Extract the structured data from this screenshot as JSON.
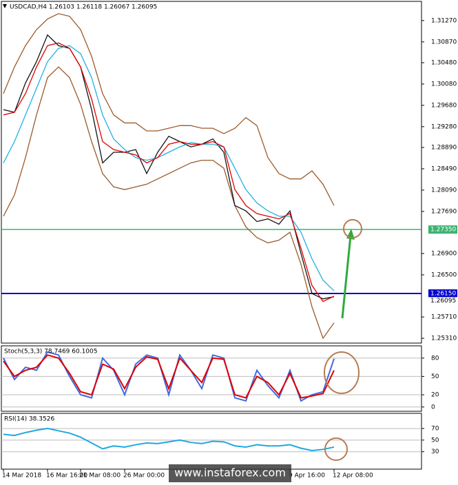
{
  "watermark": "www.instaforex.com",
  "chart_data": [
    {
      "type": "line",
      "title": "USDCAD,H4 1.26103 1.26118 1.26067 1.26095",
      "categories": [
        "14 Mar 2018",
        null,
        null,
        null,
        "16 Mar 16:00",
        null,
        null,
        "21 Mar 08:00",
        null,
        null,
        null,
        "26 Mar 00:00",
        null,
        null,
        null,
        null,
        null,
        null,
        null,
        null,
        null,
        null,
        null,
        null,
        null,
        null,
        "9 Apr 16:00",
        null,
        null,
        null,
        "12 Apr 08:00"
      ],
      "ylim": [
        1.2522,
        1.3163
      ],
      "yticks": [
        {
          "value": 1.3127,
          "label": "1.31270"
        },
        {
          "value": 1.3087,
          "label": "1.30870"
        },
        {
          "value": 1.3048,
          "label": "1.30480"
        },
        {
          "value": 1.3008,
          "label": "1.30080"
        },
        {
          "value": 1.2968,
          "label": "1.29680"
        },
        {
          "value": 1.2928,
          "label": "1.29280"
        },
        {
          "value": 1.2889,
          "label": "1.28890"
        },
        {
          "value": 1.2849,
          "label": "1.28490"
        },
        {
          "value": 1.2809,
          "label": "1.28090"
        },
        {
          "value": 1.2769,
          "label": "1.27690"
        },
        {
          "value": 1.269,
          "label": "1.26900"
        },
        {
          "value": 1.265,
          "label": "1.26500"
        },
        {
          "value": 1.2571,
          "label": "1.25710"
        },
        {
          "value": 1.2531,
          "label": "1.25310"
        }
      ],
      "levels": [
        {
          "value": 1.2735,
          "label": "1.27350",
          "color": "#3cb371"
        },
        {
          "value": 1.2615,
          "label": "1.26150",
          "color": "#0000cd"
        }
      ],
      "last": {
        "value": 1.26095,
        "label": "1.26095"
      },
      "series": [
        {
          "color": "#9a5a2a",
          "values": [
            1.299,
            1.304,
            1.308,
            1.311,
            1.313,
            1.314,
            1.3135,
            1.311,
            1.306,
            1.299,
            1.295,
            1.2935,
            1.2935,
            1.292,
            1.292,
            1.2925,
            1.293,
            1.293,
            1.2925,
            1.2925,
            1.2915,
            1.2925,
            1.2945,
            1.293,
            1.287,
            1.284,
            1.283,
            1.283,
            1.2845,
            1.282,
            1.278
          ]
        },
        {
          "color": "#9a5a2a",
          "values": [
            1.276,
            1.28,
            1.287,
            1.295,
            1.302,
            1.304,
            1.302,
            1.297,
            1.29,
            1.284,
            1.2815,
            1.281,
            1.2815,
            1.282,
            1.283,
            1.284,
            1.285,
            1.286,
            1.2865,
            1.2865,
            1.285,
            1.278,
            1.274,
            1.272,
            1.271,
            1.2715,
            1.273,
            1.267,
            1.259,
            1.2531,
            1.256
          ]
        },
        {
          "color": "#111111",
          "values": [
            1.296,
            1.2955,
            1.301,
            1.305,
            1.31,
            1.308,
            1.3075,
            1.304,
            1.296,
            1.286,
            1.288,
            1.288,
            1.2885,
            1.284,
            1.288,
            1.291,
            1.29,
            1.289,
            1.2895,
            1.2905,
            1.288,
            1.278,
            1.277,
            1.275,
            1.2755,
            1.2745,
            1.277,
            1.269,
            1.2615,
            1.2605,
            1.2609
          ]
        },
        {
          "color": "#20b0e0",
          "values": [
            1.286,
            1.29,
            1.295,
            1.3,
            1.305,
            1.3075,
            1.308,
            1.3065,
            1.302,
            1.295,
            1.2905,
            1.2885,
            1.287,
            1.2865,
            1.287,
            1.288,
            1.289,
            1.2898,
            1.2895,
            1.2895,
            1.289,
            1.285,
            1.281,
            1.2785,
            1.277,
            1.276,
            1.276,
            1.273,
            1.268,
            1.264,
            1.262
          ]
        },
        {
          "color": "#e00000",
          "values": [
            1.295,
            1.2955,
            1.299,
            1.304,
            1.308,
            1.3085,
            1.3075,
            1.304,
            1.298,
            1.29,
            1.2885,
            1.288,
            1.2875,
            1.286,
            1.287,
            1.2895,
            1.29,
            1.2895,
            1.2895,
            1.29,
            1.289,
            1.281,
            1.278,
            1.2765,
            1.276,
            1.2755,
            1.2765,
            1.27,
            1.263,
            1.26,
            1.261
          ]
        }
      ]
    },
    {
      "type": "line",
      "title": "Stoch(5,3,3) 78.7469 60.1005",
      "ylim": [
        -7,
        100
      ],
      "yticks": [
        0,
        20,
        50,
        80
      ],
      "series": [
        {
          "color": "#4169e1",
          "values": [
            80,
            45,
            65,
            60,
            90,
            85,
            50,
            20,
            15,
            80,
            60,
            20,
            70,
            85,
            80,
            20,
            85,
            60,
            30,
            85,
            80,
            15,
            10,
            60,
            35,
            15,
            60,
            10,
            20,
            25,
            79
          ]
        },
        {
          "color": "#e00000",
          "values": [
            75,
            50,
            60,
            65,
            85,
            80,
            55,
            25,
            20,
            70,
            62,
            30,
            65,
            82,
            78,
            30,
            80,
            60,
            40,
            80,
            78,
            20,
            15,
            50,
            40,
            20,
            55,
            15,
            18,
            22,
            60
          ]
        }
      ]
    },
    {
      "type": "line",
      "title": "RSI(14) 38.3526",
      "ylim": [
        0,
        96
      ],
      "yticks": [
        30,
        50,
        70
      ],
      "series": [
        {
          "color": "#1fa8e0",
          "values": [
            60,
            58,
            63,
            67,
            70,
            66,
            62,
            55,
            45,
            35,
            40,
            38,
            42,
            45,
            44,
            47,
            50,
            46,
            44,
            48,
            47,
            40,
            38,
            42,
            40,
            40,
            42,
            36,
            32,
            34,
            38
          ]
        }
      ]
    }
  ]
}
